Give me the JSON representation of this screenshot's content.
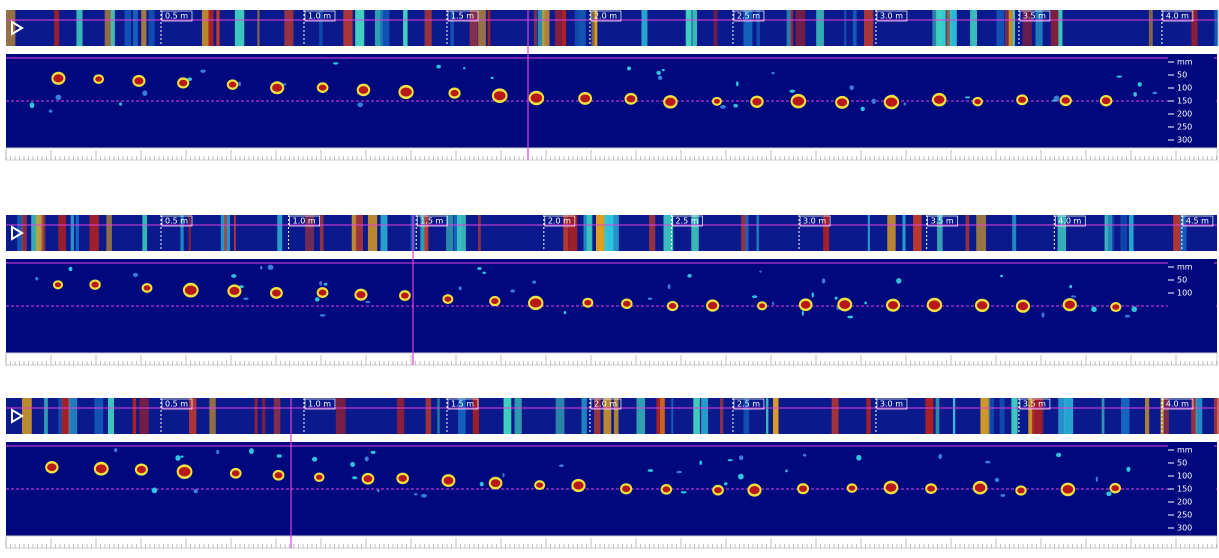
{
  "panels": [
    {
      "strip_labels": [
        "0.5 m",
        "1.0 m",
        "1.5 m",
        "2.0 m",
        "2.5 m",
        "3.0 m",
        "3.5 m",
        "4.0 m"
      ],
      "depth_labels": [
        "mm",
        "50",
        "100",
        "150",
        "200",
        "250",
        "300"
      ]
    },
    {
      "strip_labels": [
        "0.5 m",
        "1.0 m",
        "1.5 m",
        "2.0 m",
        "2.5 m",
        "3.0 m",
        "3.5 m",
        "4.0 m",
        "4.5 m"
      ],
      "depth_labels": [
        "mm",
        "50",
        "100"
      ]
    },
    {
      "strip_labels": [
        "0.5 m",
        "1.0 m",
        "1.5 m",
        "2.0 m",
        "2.5 m",
        "3.0 m",
        "3.5 m",
        "4.0 m"
      ],
      "depth_labels": [
        "mm",
        "50",
        "100",
        "150",
        "200",
        "250",
        "300"
      ]
    }
  ]
}
